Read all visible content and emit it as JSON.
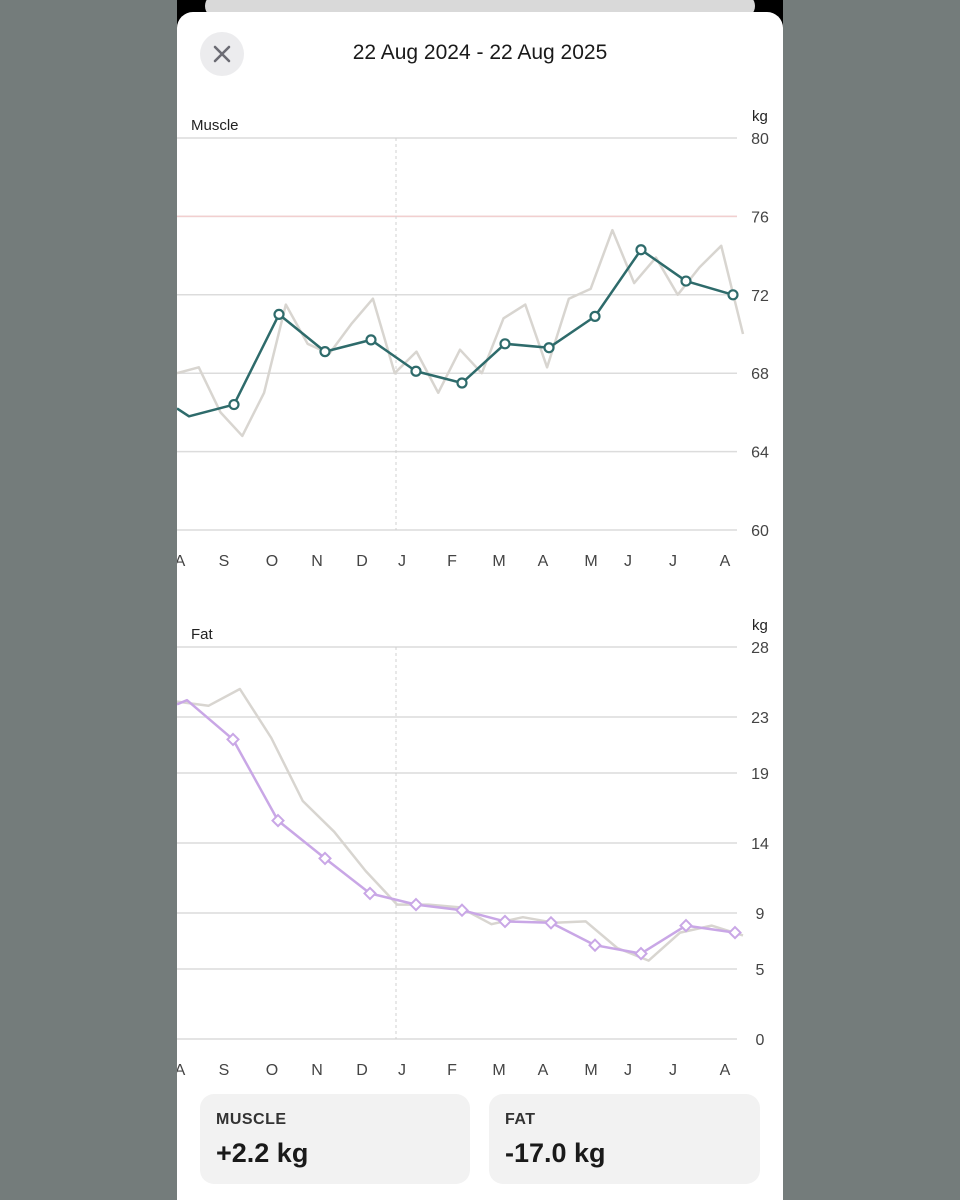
{
  "header": {
    "date_range": "22 Aug 2024 - 22 Aug 2025",
    "close_icon": "close-icon"
  },
  "charts": {
    "muscle": {
      "label": "Muscle",
      "unit": "kg",
      "months": [
        "A",
        "S",
        "O",
        "N",
        "D",
        "J",
        "F",
        "M",
        "A",
        "M",
        "J",
        "J",
        "A"
      ]
    },
    "fat": {
      "label": "Fat",
      "unit": "kg",
      "months": [
        "A",
        "S",
        "O",
        "N",
        "D",
        "J",
        "F",
        "M",
        "A",
        "M",
        "J",
        "J",
        "A"
      ]
    }
  },
  "chart_data": [
    {
      "type": "line",
      "title": "Muscle",
      "ylabel": "kg",
      "ylim": [
        60,
        80
      ],
      "yticks": [
        80,
        76,
        72,
        68,
        64,
        60
      ],
      "target_line": 76,
      "series": [
        {
          "values": [
            66.2,
            65.8,
            66.4,
            71.0,
            69.1,
            69.7,
            68.1,
            67.5,
            69.5,
            69.3,
            70.9,
            74.3,
            72.7,
            72.0
          ]
        },
        {
          "values": [
            68.0,
            68.3,
            66.0,
            64.8,
            67.0,
            71.5,
            69.5,
            69.0,
            70.5,
            71.8,
            68.0,
            69.1,
            67.0,
            69.2,
            68.0,
            70.8,
            71.5,
            68.3,
            71.8,
            72.3,
            75.3,
            72.6,
            73.9,
            72.0,
            73.4,
            74.5,
            70.0
          ]
        }
      ],
      "markers": true
    },
    {
      "type": "line",
      "title": "Fat",
      "ylabel": "kg",
      "yticks": [
        28,
        23,
        19,
        14,
        9,
        5,
        0
      ],
      "ylim": [
        0,
        28
      ],
      "series": [
        {
          "values": [
            23.9,
            24.2,
            21.4,
            15.6,
            12.9,
            10.4,
            9.6,
            9.2,
            8.4,
            8.3,
            6.7,
            6.1,
            8.1,
            7.6
          ]
        },
        {
          "values": [
            24.1,
            23.8,
            25.0,
            21.5,
            17.0,
            14.8,
            12.0,
            9.6,
            9.6,
            9.4,
            8.2,
            8.7,
            8.3,
            8.4,
            6.5,
            5.6,
            7.6,
            8.1,
            7.4
          ]
        }
      ],
      "markers": true
    }
  ],
  "summary": {
    "muscle": {
      "label": "MUSCLE",
      "value": "+2.2 kg"
    },
    "fat": {
      "label": "FAT",
      "value": "-17.0 kg"
    }
  },
  "colors": {
    "muscle_line": "#2e6b6b",
    "fat_line": "#c9a7e6",
    "raw_line": "#d8d5d0",
    "target_line": "#f2cfcf",
    "grid": "#dcdcdc",
    "backdrop": "#747c7b"
  }
}
